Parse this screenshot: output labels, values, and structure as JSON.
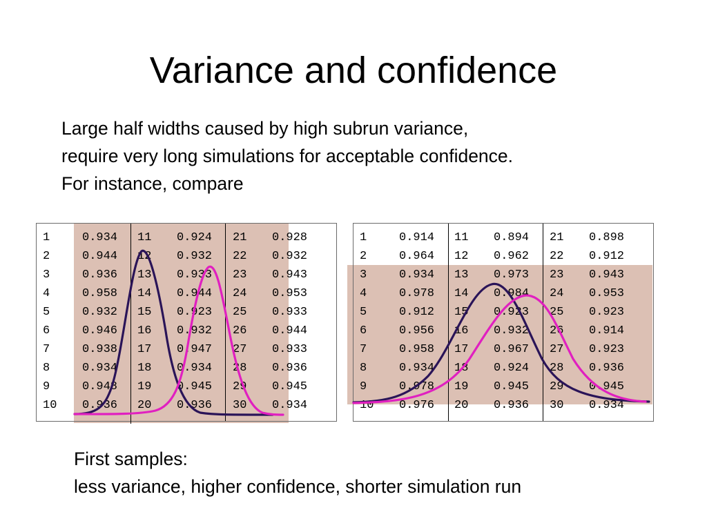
{
  "slide": {
    "title": "Variance and confidence",
    "intro_lines": [
      "Large half widths caused by high subrun variance,",
      "require very long simulations for acceptable confidence.",
      "For instance, compare"
    ],
    "outro_lines": [
      "First samples:",
      "less variance, higher confidence, shorter simulation run"
    ]
  },
  "tables": [
    {
      "name": "first-samples",
      "rows": [
        [
          "1",
          "0.934",
          "11",
          "0.924",
          "21",
          "0.928"
        ],
        [
          "2",
          "0.944",
          "12",
          "0.932",
          "22",
          "0.932"
        ],
        [
          "3",
          "0.936",
          "13",
          "0.933",
          "23",
          "0.943"
        ],
        [
          "4",
          "0.958",
          "14",
          "0.944",
          "24",
          "0.953"
        ],
        [
          "5",
          "0.932",
          "15",
          "0.923",
          "25",
          "0.933"
        ],
        [
          "6",
          "0.946",
          "16",
          "0.932",
          "26",
          "0.944"
        ],
        [
          "7",
          "0.938",
          "17",
          "0.947",
          "27",
          "0.933"
        ],
        [
          "8",
          "0.934",
          "18",
          "0.934",
          "28",
          "0.936"
        ],
        [
          "9",
          "0.948",
          "19",
          "0.945",
          "29",
          "0.945"
        ],
        [
          "10",
          "0.936",
          "20",
          "0.936",
          "30",
          "0.934"
        ]
      ]
    },
    {
      "name": "second-samples",
      "rows": [
        [
          "1",
          "0.914",
          "11",
          "0.894",
          "21",
          "0.898"
        ],
        [
          "2",
          "0.964",
          "12",
          "0.962",
          "22",
          "0.912"
        ],
        [
          "3",
          "0.934",
          "13",
          "0.973",
          "23",
          "0.943"
        ],
        [
          "4",
          "0.978",
          "14",
          "0.984",
          "24",
          "0.953"
        ],
        [
          "5",
          "0.912",
          "15",
          "0.923",
          "25",
          "0.923"
        ],
        [
          "6",
          "0.956",
          "16",
          "0.932",
          "26",
          "0.914"
        ],
        [
          "7",
          "0.958",
          "17",
          "0.967",
          "27",
          "0.923"
        ],
        [
          "8",
          "0.934",
          "18",
          "0.924",
          "28",
          "0.936"
        ],
        [
          "9",
          "0.978",
          "19",
          "0.945",
          "29",
          "0.945"
        ],
        [
          "10",
          "0.976",
          "20",
          "0.936",
          "30",
          "0.934"
        ]
      ]
    }
  ],
  "colors": {
    "highlight": "#dcc0b4",
    "curve_dark": "#2a1458",
    "curve_magenta": "#e020c0"
  }
}
